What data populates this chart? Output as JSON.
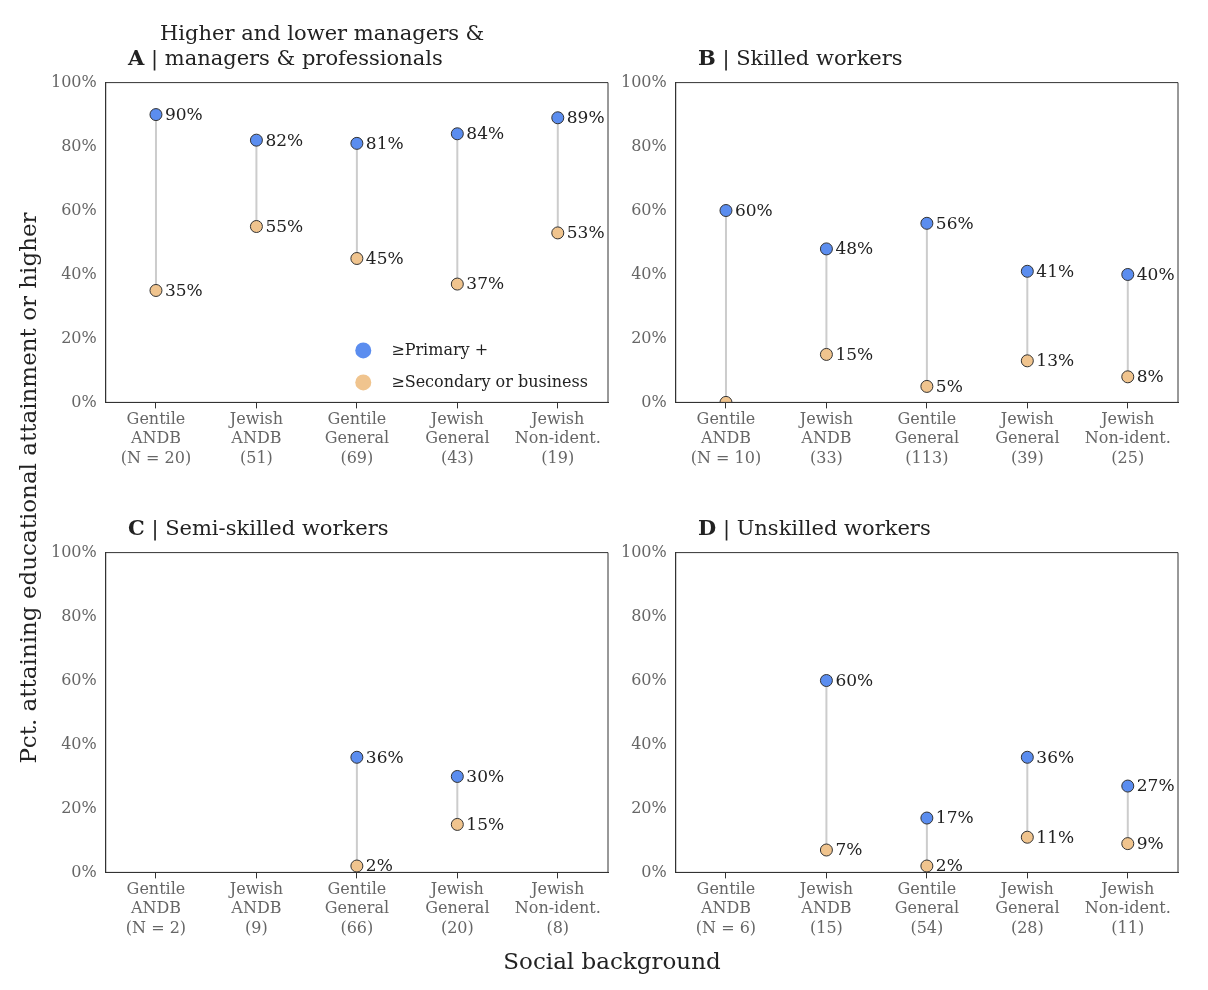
{
  "chart_data": [
    {
      "type": "scatter",
      "title": "Higher and lower managers &\nA | managers & professionals",
      "ylabel": "Pct. attaining educational attainment or higher",
      "categories": [
        "Gentile\nANDB\n(N = 20)",
        "Jewish\nANDB\n(51)",
        "Gentile\nGeneral\n(69)",
        "Jewish\nGeneral\n(43)",
        "Jewish\nNon-ident.\n(19)"
      ],
      "ylim": [
        0,
        100
      ],
      "yticks": [
        {
          "value": 0,
          "label": "0%"
        },
        {
          "value": 20,
          "label": "20%"
        },
        {
          "value": 40,
          "label": "40%"
        },
        {
          "value": 60,
          "label": "60%"
        },
        {
          "value": 80,
          "label": "80%"
        },
        {
          "value": 100,
          "label": "100%"
        }
      ],
      "marker": "circle",
      "legend": "bottom right",
      "series": [
        {
          "name": "≥Primary +",
          "color": "#5b8def",
          "values": [
            90,
            82,
            81,
            84,
            89
          ],
          "value_labels": [
            "90%",
            "82%",
            "81%",
            "84%",
            "89%"
          ]
        },
        {
          "name": "≥Secondary or business",
          "color": "#f0c48e",
          "values": [
            35,
            55,
            45,
            37,
            53
          ],
          "value_labels": [
            "35%",
            "55%",
            "45%",
            "37%",
            "53%"
          ]
        }
      ]
    },
    {
      "type": "scatter",
      "title": "B | Skilled workers",
      "categories": [
        "Gentile\nANDB\n(N = 10)",
        "Jewish\nANDB\n(33)",
        "Gentile\nGeneral\n(113)",
        "Jewish\nGeneral\n(39)",
        "Jewish\nNon-ident.\n(25)"
      ],
      "ylim": [
        0,
        100
      ],
      "yticks": [
        {
          "value": 0,
          "label": "0%"
        },
        {
          "value": 20,
          "label": "20%"
        },
        {
          "value": 40,
          "label": "40%"
        },
        {
          "value": 60,
          "label": "60%"
        },
        {
          "value": 80,
          "label": "80%"
        },
        {
          "value": 100,
          "label": "100%"
        }
      ],
      "marker": "circle",
      "series": [
        {
          "color": "#5b8def",
          "values": [
            60,
            48,
            56,
            41,
            40
          ],
          "value_labels": [
            "60%",
            "48%",
            "56%",
            "41%",
            "40%"
          ]
        },
        {
          "color": "#f0c48e",
          "values": [
            0,
            15,
            5,
            13,
            8
          ],
          "value_labels": [
            null,
            "15%",
            "5%",
            "13%",
            "8%"
          ]
        }
      ]
    },
    {
      "type": "scatter",
      "title": "C | Semi-skilled workers",
      "xlabel": "Social background",
      "categories": [
        "Gentile\nANDB\n(N = 2)",
        "Jewish\nANDB\n(9)",
        "Gentile\nGeneral\n(66)",
        "Jewish\nGeneral\n(20)",
        "Jewish\nNon-ident.\n(8)"
      ],
      "ylim": [
        0,
        100
      ],
      "yticks": [
        {
          "value": 0,
          "label": "0%"
        },
        {
          "value": 20,
          "label": "20%"
        },
        {
          "value": 40,
          "label": "40%"
        },
        {
          "value": 60,
          "label": "60%"
        },
        {
          "value": 80,
          "label": "80%"
        },
        {
          "value": 100,
          "label": "100%"
        }
      ],
      "marker": "circle",
      "series": [
        {
          "color": "#5b8def",
          "values": [
            null,
            null,
            36,
            30,
            null
          ],
          "value_labels": [
            null,
            null,
            "36%",
            "30%",
            null
          ]
        },
        {
          "color": "#f0c48e",
          "values": [
            null,
            null,
            2,
            15,
            null
          ],
          "value_labels": [
            null,
            null,
            "2%",
            "15%",
            null
          ]
        }
      ]
    },
    {
      "type": "scatter",
      "title": "D | Unskilled workers",
      "categories": [
        "Gentile\nANDB\n(N = 6)",
        "Jewish\nANDB\n(15)",
        "Gentile\nGeneral\n(54)",
        "Jewish\nGeneral\n(28)",
        "Jewish\nNon-ident.\n(11)"
      ],
      "ylim": [
        0,
        100
      ],
      "yticks": [
        {
          "value": 0,
          "label": "0%"
        },
        {
          "value": 20,
          "label": "20%"
        },
        {
          "value": 40,
          "label": "40%"
        },
        {
          "value": 60,
          "label": "60%"
        },
        {
          "value": 80,
          "label": "80%"
        },
        {
          "value": 100,
          "label": "100%"
        }
      ],
      "marker": "circle",
      "series": [
        {
          "color": "#5b8def",
          "values": [
            null,
            60,
            17,
            36,
            27
          ],
          "value_labels": [
            null,
            "60%",
            "17%",
            "36%",
            "27%"
          ]
        },
        {
          "color": "#f0c48e",
          "values": [
            null,
            7,
            2,
            11,
            9
          ],
          "value_labels": [
            null,
            "7%",
            "2%",
            "11%",
            "9%"
          ]
        }
      ]
    }
  ]
}
